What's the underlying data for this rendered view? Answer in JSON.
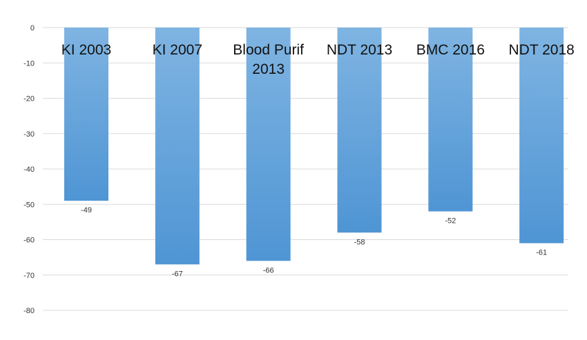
{
  "chart_data": {
    "type": "bar",
    "title": "",
    "xlabel": "",
    "ylabel": "",
    "categories": [
      "KI 2003",
      "KI 2007",
      "Blood Purif 2013",
      "NDT 2013",
      "BMC 2016",
      "NDT 2018"
    ],
    "category_lines": [
      [
        "KI 2003"
      ],
      [
        "KI 2007"
      ],
      [
        "Blood Purif",
        "2013"
      ],
      [
        "NDT 2013"
      ],
      [
        "BMC 2016"
      ],
      [
        "NDT 2018"
      ]
    ],
    "values": [
      -49,
      -67,
      -66,
      -58,
      -52,
      -61
    ],
    "data_labels": [
      "-49",
      "-67",
      "-66",
      "-58",
      "-52",
      "-61"
    ],
    "ylim": [
      -80,
      0
    ],
    "yticks": [
      0,
      -10,
      -20,
      -30,
      -40,
      -50,
      -60,
      -70,
      -80
    ],
    "ytick_labels": [
      "0",
      "-10",
      "-20",
      "-30",
      "-40",
      "-50",
      "-60",
      "-70",
      "-80"
    ],
    "grid": true,
    "legend": "none",
    "colors": {
      "bar_top": "#7fb4e2",
      "bar_bottom": "#4f95d4",
      "grid": "#d9d9d9"
    }
  }
}
